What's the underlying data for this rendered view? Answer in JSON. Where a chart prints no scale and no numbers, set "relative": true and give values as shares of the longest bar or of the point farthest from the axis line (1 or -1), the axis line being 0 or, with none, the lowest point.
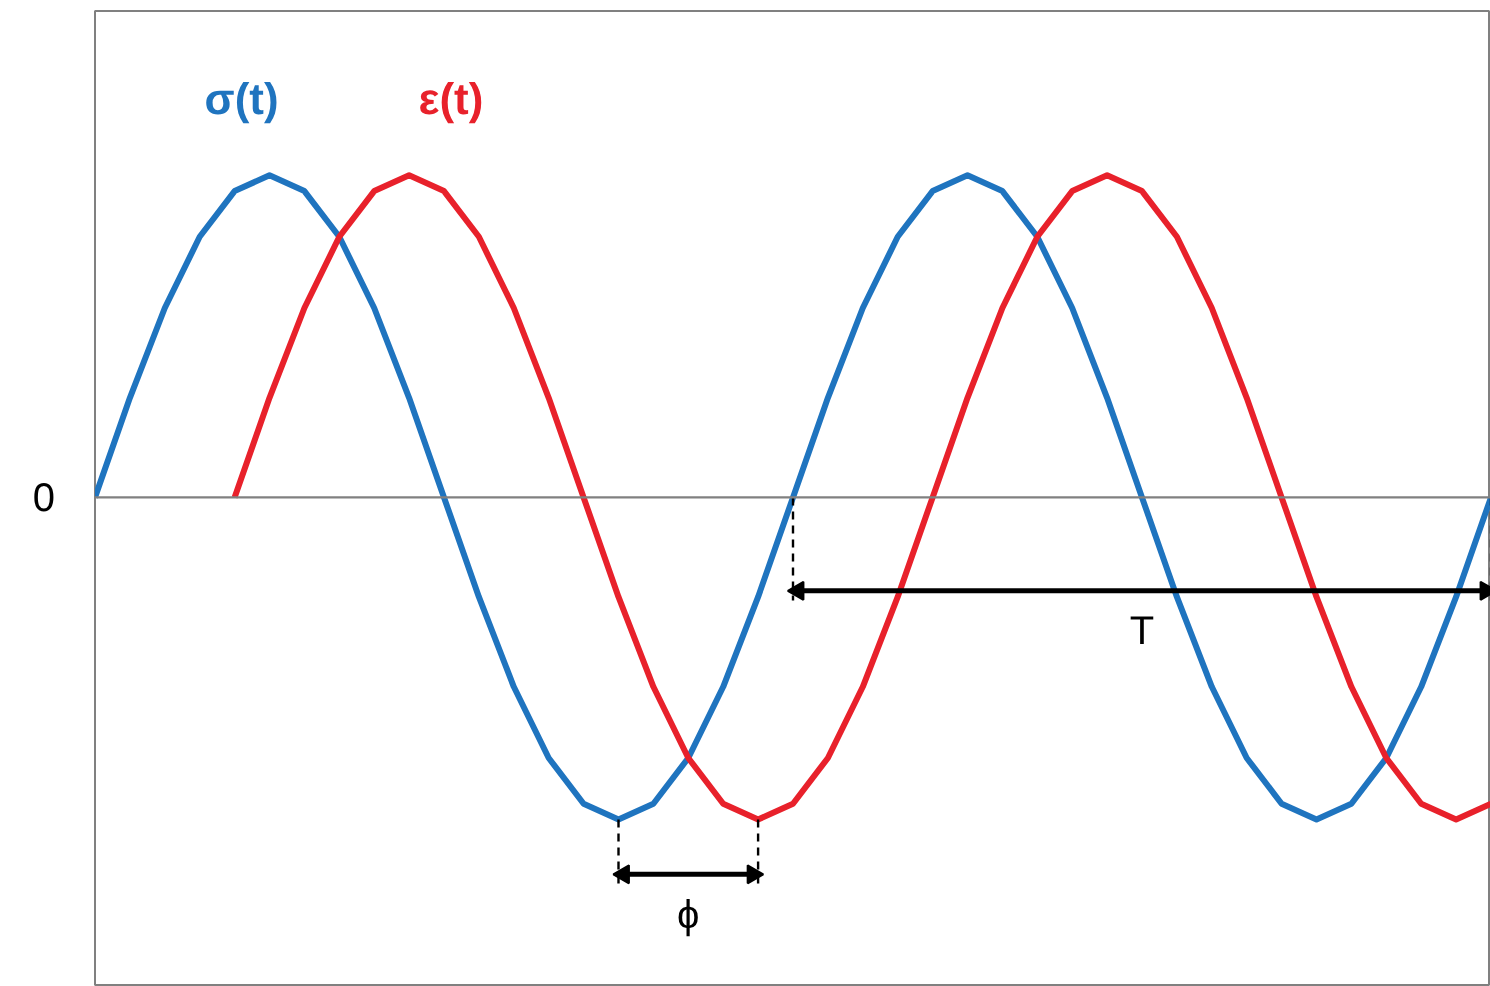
{
  "chart_data": {
    "type": "line",
    "relative": true,
    "categories": [
      null,
      null,
      null,
      null,
      null,
      null,
      null,
      null,
      null,
      null,
      null,
      null,
      null,
      null,
      null,
      null,
      null,
      null,
      null,
      null,
      null,
      null,
      null,
      null,
      null,
      null,
      null,
      null,
      null,
      null,
      null,
      null,
      null,
      null,
      null,
      null,
      null,
      null,
      null,
      null,
      null
    ],
    "series": [
      {
        "name": "σ(t)",
        "color": "#1f74bf",
        "values": [
          0,
          0.309,
          0.588,
          0.809,
          0.951,
          1,
          0.951,
          0.809,
          0.588,
          0.309,
          0,
          -0.309,
          -0.588,
          -0.809,
          -0.951,
          -1,
          -0.951,
          -0.809,
          -0.588,
          -0.309,
          0,
          0.309,
          0.588,
          0.809,
          0.951,
          1,
          0.951,
          0.809,
          0.588,
          0.309,
          0,
          -0.309,
          -0.588,
          -0.809,
          -0.951,
          -1,
          -0.951,
          -0.809,
          -0.588,
          -0.309,
          0
        ]
      },
      {
        "name": "ε(t)",
        "color": "#e8212b",
        "values": [
          null,
          null,
          null,
          null,
          0,
          0.309,
          0.588,
          0.809,
          0.951,
          1,
          0.951,
          0.809,
          0.588,
          0.309,
          0,
          -0.309,
          -0.588,
          -0.809,
          -0.951,
          -1,
          -0.951,
          -0.809,
          -0.588,
          -0.309,
          0,
          0.309,
          0.588,
          0.809,
          0.951,
          1,
          0.951,
          0.809,
          0.588,
          0.309,
          0,
          -0.309,
          -0.588,
          -0.809,
          -0.951,
          -1,
          -0.951
        ]
      }
    ],
    "annotations": [
      "0",
      "T",
      "ϕ"
    ],
    "grid": false,
    "legend": false,
    "line_style": "solid",
    "marker": "none"
  }
}
